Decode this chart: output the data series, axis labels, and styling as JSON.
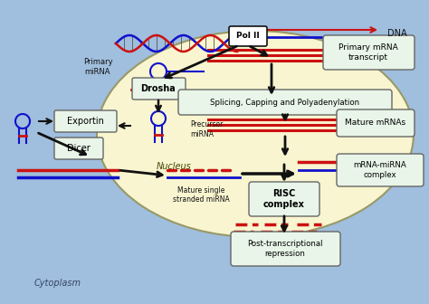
{
  "bg_outer": "#a0bedd",
  "bg_nucleus": "#f8f5d0",
  "color_red": "#cc1111",
  "color_blue": "#1111cc",
  "color_black": "#111111",
  "color_box_fill": "#e8f5e8",
  "color_box_edge": "#666666",
  "labels": {
    "dna": "DNA",
    "pol2": "Pol II",
    "primary_mirna": "Primary\nmiRNA",
    "drosha": "Drosha",
    "exportin": "Exportin",
    "precursor": "Precursor\nmiRNA",
    "nucleus": "Nucleus",
    "primary_mrna": "Primary mRNA\ntranscript",
    "splicing": "Splicing, Capping and Polyadenylation",
    "mature_mrnas": "Mature mRNAs",
    "dicer": "Dicer",
    "mature_single": "Mature single\nstranded miRNA",
    "mrna_mirna": "mRNA-miRNA\ncomplex",
    "risc": "RISC\ncomplex",
    "post": "Post-transcriptional\nrepression",
    "cytoplasm": "Cytoplasm"
  },
  "figsize": [
    4.74,
    3.36
  ],
  "dpi": 100
}
